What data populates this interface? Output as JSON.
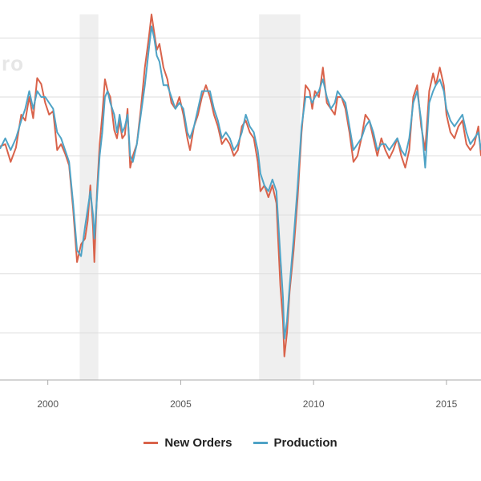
{
  "chart_data": {
    "type": "line",
    "title": "",
    "xlabel": "",
    "ylabel": "",
    "xlim": [
      1998.2,
      2016.3
    ],
    "ylim": [
      31,
      62
    ],
    "grid": true,
    "x_ticks": [
      {
        "value": 2000,
        "label": "2000"
      },
      {
        "value": 2005,
        "label": "2005"
      },
      {
        "value": 2010,
        "label": "2010"
      },
      {
        "value": 2015,
        "label": "2015"
      }
    ],
    "y_gridlines": [
      35,
      40,
      45,
      50,
      55,
      60
    ],
    "recessions": [
      [
        2001.2,
        2001.9
      ],
      [
        2007.95,
        2009.5
      ]
    ],
    "legend_position": "bottom-center",
    "series": [
      {
        "name": "New Orders",
        "color": "#d9634b",
        "points": [
          [
            1998.2,
            50.8
          ],
          [
            1998.4,
            51.0
          ],
          [
            1998.6,
            49.5
          ],
          [
            1998.8,
            50.7
          ],
          [
            1999.0,
            53.5
          ],
          [
            1999.15,
            53.0
          ],
          [
            1999.3,
            55.0
          ],
          [
            1999.45,
            53.2
          ],
          [
            1999.6,
            56.6
          ],
          [
            1999.75,
            56.1
          ],
          [
            1999.9,
            54.5
          ],
          [
            2000.05,
            53.5
          ],
          [
            2000.2,
            53.8
          ],
          [
            2000.35,
            50.5
          ],
          [
            2000.5,
            51.0
          ],
          [
            2000.65,
            50.2
          ],
          [
            2000.8,
            49.2
          ],
          [
            2000.95,
            45.5
          ],
          [
            2001.1,
            41.0
          ],
          [
            2001.25,
            42.5
          ],
          [
            2001.4,
            43.0
          ],
          [
            2001.5,
            44.5
          ],
          [
            2001.6,
            47.5
          ],
          [
            2001.7,
            44.0
          ],
          [
            2001.75,
            41.0
          ],
          [
            2001.85,
            47.0
          ],
          [
            2001.95,
            51.0
          ],
          [
            2002.05,
            53.5
          ],
          [
            2002.15,
            56.5
          ],
          [
            2002.25,
            55.5
          ],
          [
            2002.35,
            55.0
          ],
          [
            2002.5,
            52.2
          ],
          [
            2002.6,
            51.5
          ],
          [
            2002.7,
            53.0
          ],
          [
            2002.8,
            51.5
          ],
          [
            2002.9,
            51.8
          ],
          [
            2003.0,
            54.0
          ],
          [
            2003.1,
            49.0
          ],
          [
            2003.2,
            50.0
          ],
          [
            2003.35,
            51.0
          ],
          [
            2003.5,
            54.0
          ],
          [
            2003.65,
            57.5
          ],
          [
            2003.8,
            60.0
          ],
          [
            2003.9,
            62.0
          ],
          [
            2004.0,
            60.5
          ],
          [
            2004.1,
            59.0
          ],
          [
            2004.2,
            59.5
          ],
          [
            2004.35,
            57.5
          ],
          [
            2004.5,
            56.5
          ],
          [
            2004.65,
            54.5
          ],
          [
            2004.8,
            54.0
          ],
          [
            2004.95,
            55.0
          ],
          [
            2005.1,
            53.5
          ],
          [
            2005.25,
            51.5
          ],
          [
            2005.35,
            50.5
          ],
          [
            2005.5,
            52.5
          ],
          [
            2005.65,
            53.5
          ],
          [
            2005.8,
            55.0
          ],
          [
            2005.95,
            56.0
          ],
          [
            2006.1,
            55.0
          ],
          [
            2006.25,
            53.5
          ],
          [
            2006.4,
            52.5
          ],
          [
            2006.55,
            51.0
          ],
          [
            2006.7,
            51.5
          ],
          [
            2006.85,
            51.0
          ],
          [
            2007.0,
            50.0
          ],
          [
            2007.15,
            50.5
          ],
          [
            2007.3,
            52.5
          ],
          [
            2007.45,
            53.0
          ],
          [
            2007.6,
            52.0
          ],
          [
            2007.75,
            51.5
          ],
          [
            2007.9,
            49.5
          ],
          [
            2008.0,
            47.0
          ],
          [
            2008.15,
            47.5
          ],
          [
            2008.3,
            46.5
          ],
          [
            2008.45,
            47.5
          ],
          [
            2008.6,
            46.0
          ],
          [
            2008.75,
            39.0
          ],
          [
            2008.85,
            36.0
          ],
          [
            2008.9,
            33.0
          ],
          [
            2009.0,
            35.0
          ],
          [
            2009.1,
            38.5
          ],
          [
            2009.25,
            42.0
          ],
          [
            2009.4,
            46.5
          ],
          [
            2009.55,
            52.0
          ],
          [
            2009.7,
            56.0
          ],
          [
            2009.85,
            55.5
          ],
          [
            2009.95,
            54.0
          ],
          [
            2010.05,
            55.5
          ],
          [
            2010.2,
            55.0
          ],
          [
            2010.35,
            57.5
          ],
          [
            2010.5,
            54.5
          ],
          [
            2010.65,
            54.0
          ],
          [
            2010.8,
            53.5
          ],
          [
            2010.9,
            55.0
          ],
          [
            2011.05,
            55.0
          ],
          [
            2011.2,
            54.0
          ],
          [
            2011.35,
            52.0
          ],
          [
            2011.5,
            49.5
          ],
          [
            2011.65,
            50.0
          ],
          [
            2011.8,
            51.5
          ],
          [
            2011.95,
            53.5
          ],
          [
            2012.1,
            53.0
          ],
          [
            2012.25,
            51.5
          ],
          [
            2012.4,
            50.0
          ],
          [
            2012.55,
            51.5
          ],
          [
            2012.7,
            50.5
          ],
          [
            2012.85,
            49.8
          ],
          [
            2013.0,
            50.5
          ],
          [
            2013.15,
            51.5
          ],
          [
            2013.3,
            50.0
          ],
          [
            2013.45,
            49.0
          ],
          [
            2013.6,
            50.5
          ],
          [
            2013.75,
            55.0
          ],
          [
            2013.9,
            56.0
          ],
          [
            2014.05,
            52.5
          ],
          [
            2014.2,
            50.5
          ],
          [
            2014.35,
            55.5
          ],
          [
            2014.5,
            57.0
          ],
          [
            2014.6,
            56.0
          ],
          [
            2014.75,
            57.5
          ],
          [
            2014.9,
            56.0
          ],
          [
            2015.0,
            53.5
          ],
          [
            2015.15,
            52.0
          ],
          [
            2015.3,
            51.5
          ],
          [
            2015.45,
            52.5
          ],
          [
            2015.6,
            53.0
          ],
          [
            2015.75,
            51.0
          ],
          [
            2015.9,
            50.5
          ],
          [
            2016.05,
            51.0
          ],
          [
            2016.2,
            52.5
          ],
          [
            2016.3,
            50.0
          ]
        ]
      },
      {
        "name": "Production",
        "color": "#4fa3c6",
        "points": [
          [
            1998.2,
            50.6
          ],
          [
            1998.4,
            51.5
          ],
          [
            1998.6,
            50.5
          ],
          [
            1998.8,
            51.5
          ],
          [
            1999.0,
            53.0
          ],
          [
            1999.15,
            54.0
          ],
          [
            1999.3,
            55.5
          ],
          [
            1999.45,
            54.0
          ],
          [
            1999.6,
            55.5
          ],
          [
            1999.75,
            55.0
          ],
          [
            1999.9,
            55.0
          ],
          [
            2000.05,
            54.5
          ],
          [
            2000.2,
            54.0
          ],
          [
            2000.35,
            52.0
          ],
          [
            2000.5,
            51.5
          ],
          [
            2000.65,
            50.5
          ],
          [
            2000.8,
            49.5
          ],
          [
            2000.95,
            46.0
          ],
          [
            2001.1,
            42.0
          ],
          [
            2001.25,
            41.5
          ],
          [
            2001.4,
            44.0
          ],
          [
            2001.5,
            45.5
          ],
          [
            2001.6,
            47.0
          ],
          [
            2001.7,
            45.0
          ],
          [
            2001.75,
            43.0
          ],
          [
            2001.85,
            46.5
          ],
          [
            2001.95,
            50.0
          ],
          [
            2002.05,
            52.0
          ],
          [
            2002.15,
            55.0
          ],
          [
            2002.25,
            55.5
          ],
          [
            2002.35,
            54.5
          ],
          [
            2002.5,
            53.5
          ],
          [
            2002.6,
            52.0
          ],
          [
            2002.7,
            53.5
          ],
          [
            2002.8,
            52.0
          ],
          [
            2002.9,
            52.5
          ],
          [
            2003.0,
            53.5
          ],
          [
            2003.1,
            50.0
          ],
          [
            2003.2,
            49.5
          ],
          [
            2003.35,
            51.0
          ],
          [
            2003.5,
            53.5
          ],
          [
            2003.65,
            56.0
          ],
          [
            2003.8,
            59.0
          ],
          [
            2003.9,
            61.0
          ],
          [
            2004.0,
            60.0
          ],
          [
            2004.1,
            58.5
          ],
          [
            2004.2,
            58.0
          ],
          [
            2004.35,
            56.0
          ],
          [
            2004.5,
            56.0
          ],
          [
            2004.65,
            55.0
          ],
          [
            2004.8,
            54.0
          ],
          [
            2004.95,
            54.5
          ],
          [
            2005.1,
            54.0
          ],
          [
            2005.25,
            52.0
          ],
          [
            2005.35,
            51.5
          ],
          [
            2005.5,
            52.5
          ],
          [
            2005.65,
            54.0
          ],
          [
            2005.8,
            55.5
          ],
          [
            2005.95,
            55.5
          ],
          [
            2006.1,
            55.5
          ],
          [
            2006.25,
            54.0
          ],
          [
            2006.4,
            53.0
          ],
          [
            2006.55,
            51.5
          ],
          [
            2006.7,
            52.0
          ],
          [
            2006.85,
            51.5
          ],
          [
            2007.0,
            50.5
          ],
          [
            2007.15,
            51.0
          ],
          [
            2007.3,
            52.0
          ],
          [
            2007.45,
            53.5
          ],
          [
            2007.6,
            52.5
          ],
          [
            2007.75,
            52.0
          ],
          [
            2007.9,
            50.5
          ],
          [
            2008.0,
            48.5
          ],
          [
            2008.15,
            47.5
          ],
          [
            2008.3,
            47.0
          ],
          [
            2008.45,
            48.0
          ],
          [
            2008.6,
            47.0
          ],
          [
            2008.75,
            41.5
          ],
          [
            2008.85,
            38.0
          ],
          [
            2008.9,
            34.5
          ],
          [
            2009.0,
            36.0
          ],
          [
            2009.1,
            39.0
          ],
          [
            2009.25,
            43.0
          ],
          [
            2009.4,
            47.5
          ],
          [
            2009.55,
            52.5
          ],
          [
            2009.7,
            55.0
          ],
          [
            2009.85,
            55.0
          ],
          [
            2009.95,
            54.5
          ],
          [
            2010.05,
            55.0
          ],
          [
            2010.2,
            55.5
          ],
          [
            2010.35,
            56.5
          ],
          [
            2010.5,
            55.0
          ],
          [
            2010.65,
            54.0
          ],
          [
            2010.8,
            54.5
          ],
          [
            2010.9,
            55.5
          ],
          [
            2011.05,
            55.0
          ],
          [
            2011.2,
            54.5
          ],
          [
            2011.35,
            52.5
          ],
          [
            2011.5,
            50.5
          ],
          [
            2011.65,
            51.0
          ],
          [
            2011.8,
            51.5
          ],
          [
            2011.95,
            52.5
          ],
          [
            2012.1,
            53.0
          ],
          [
            2012.25,
            52.0
          ],
          [
            2012.4,
            50.5
          ],
          [
            2012.55,
            51.0
          ],
          [
            2012.7,
            51.0
          ],
          [
            2012.85,
            50.5
          ],
          [
            2013.0,
            51.0
          ],
          [
            2013.15,
            51.5
          ],
          [
            2013.3,
            50.5
          ],
          [
            2013.45,
            50.0
          ],
          [
            2013.6,
            51.5
          ],
          [
            2013.75,
            54.5
          ],
          [
            2013.9,
            55.5
          ],
          [
            2014.05,
            53.0
          ],
          [
            2014.2,
            49.0
          ],
          [
            2014.35,
            54.5
          ],
          [
            2014.5,
            55.5
          ],
          [
            2014.6,
            56.0
          ],
          [
            2014.75,
            56.5
          ],
          [
            2014.9,
            55.5
          ],
          [
            2015.0,
            54.0
          ],
          [
            2015.15,
            53.0
          ],
          [
            2015.3,
            52.5
          ],
          [
            2015.45,
            53.0
          ],
          [
            2015.6,
            53.5
          ],
          [
            2015.75,
            52.0
          ],
          [
            2015.9,
            51.0
          ],
          [
            2016.05,
            51.5
          ],
          [
            2016.2,
            52.0
          ],
          [
            2016.3,
            50.5
          ]
        ]
      }
    ]
  },
  "watermark": "ro",
  "legend": [
    {
      "label": "New Orders",
      "color": "#d9634b"
    },
    {
      "label": "Production",
      "color": "#4fa3c6"
    }
  ]
}
